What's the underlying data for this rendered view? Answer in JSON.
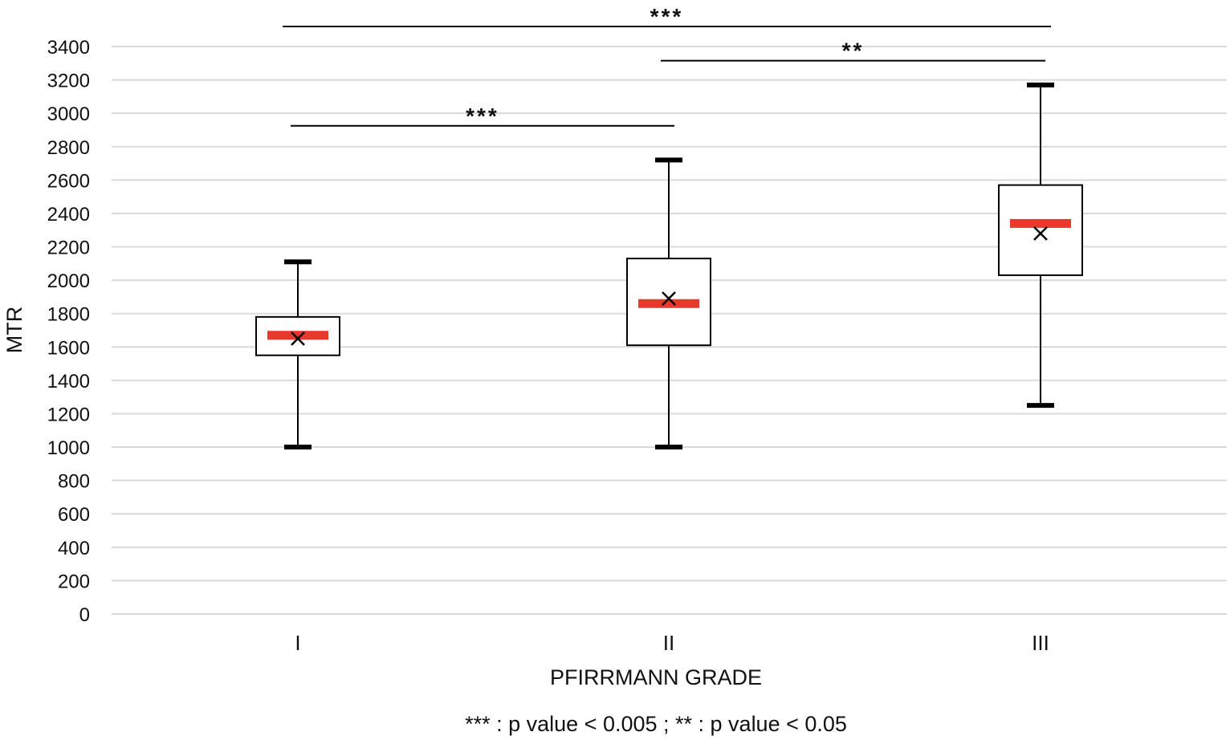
{
  "chart_data": {
    "type": "box",
    "xlabel": "PFIRRMANN GRADE",
    "ylabel": "MTR",
    "ylim": [
      0,
      3400
    ],
    "yticks": [
      0,
      200,
      400,
      600,
      800,
      1000,
      1200,
      1400,
      1600,
      1800,
      2000,
      2200,
      2400,
      2600,
      2800,
      3000,
      3200,
      3400
    ],
    "grid": true,
    "categories": [
      "I",
      "II",
      "III"
    ],
    "boxes": [
      {
        "category": "I",
        "min": 1000,
        "q1": 1550,
        "median": 1670,
        "q3": 1780,
        "max": 2110,
        "mean": 1650
      },
      {
        "category": "II",
        "min": 1000,
        "q1": 1610,
        "median": 1860,
        "q3": 2130,
        "max": 2720,
        "mean": 1890
      },
      {
        "category": "III",
        "min": 1250,
        "q1": 2030,
        "median": 2340,
        "q3": 2570,
        "max": 3170,
        "mean": 2280
      }
    ],
    "significance": [
      {
        "from": "I",
        "to": "III",
        "label": "***",
        "y": 3520
      },
      {
        "from": "II",
        "to": "III",
        "label": "**",
        "y": 3315
      },
      {
        "from": "I",
        "to": "II",
        "label": "***",
        "y": 2925
      }
    ],
    "footnote": "*** : p value < 0.005 ; ** : p value < 0.05"
  },
  "colors": {
    "grid": "#d9d9d9",
    "box": "#000000",
    "median": "#e8392c",
    "text": "#111111"
  }
}
